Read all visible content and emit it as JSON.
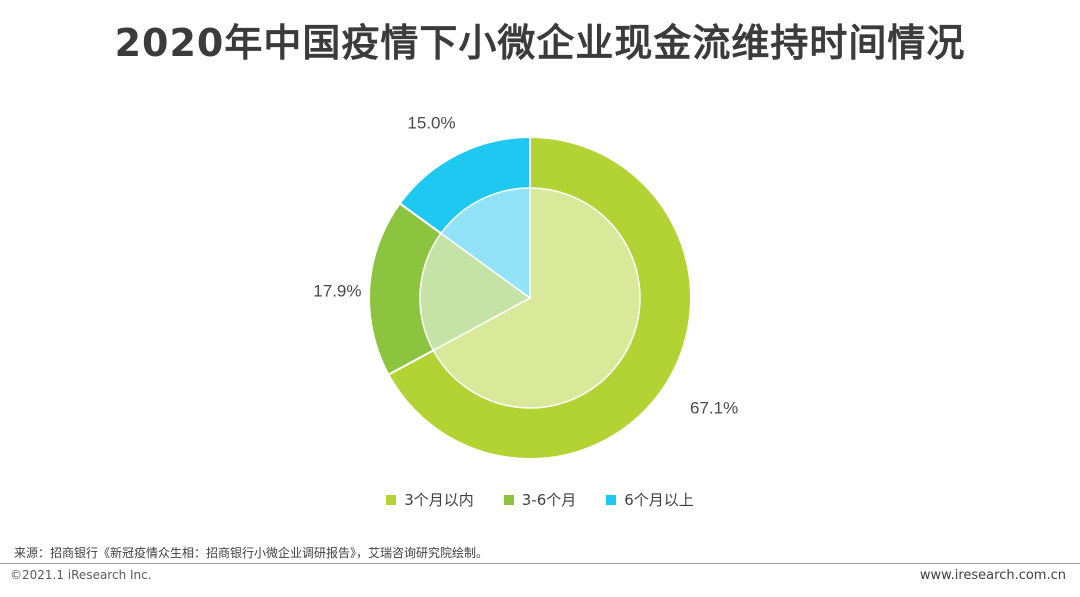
{
  "header": {
    "title": "2020年中国疫情下小微企业现金流维持时间情况"
  },
  "chart_data": {
    "type": "pie",
    "title": "2020年中国疫情下小微企业现金流维持时间情况",
    "categories": [
      "3个月以内",
      "3-6个月",
      "6个月以上"
    ],
    "values": [
      67.1,
      17.9,
      15.0
    ],
    "value_labels": [
      "67.1%",
      "17.9%",
      "15.0%"
    ],
    "colors_outer": [
      "#b3d234",
      "#8cc43f",
      "#1ec8f0"
    ],
    "colors_inner": [
      "#d8e99a",
      "#c5e3a7",
      "#92e3f8"
    ],
    "legend_position": "bottom",
    "style": "double-ring pie"
  },
  "footer": {
    "source": "来源：招商银行《新冠疫情众生相：招商银行小微企业调研报告》，艾瑞咨询研究院绘制。",
    "copyright": "©2021.1 iResearch Inc.",
    "website": "www.iresearch.com.cn"
  }
}
